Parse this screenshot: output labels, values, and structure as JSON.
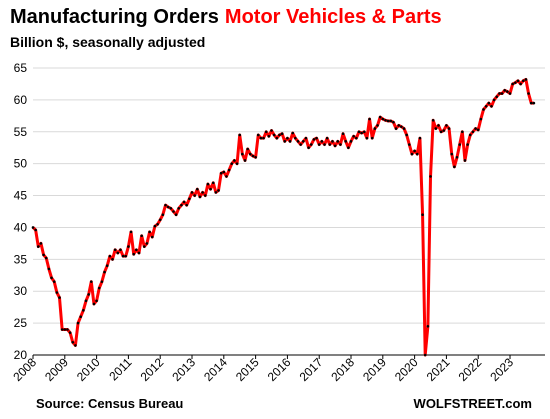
{
  "chart_data": {
    "type": "line",
    "title_part1": "Manufacturing  Orders",
    "title_part2": "Motor Vehicles & Parts",
    "subtitle": "Billion $, seasonally adjusted",
    "source": "Source: Census Bureau",
    "watermark": "WOLFSTREET.com",
    "ylim": [
      20,
      65
    ],
    "yticks": [
      20,
      25,
      30,
      35,
      40,
      45,
      50,
      55,
      60,
      65
    ],
    "xlim": [
      2008,
      2024.1
    ],
    "xticks": [
      "2008",
      "2009",
      "2010",
      "2011",
      "2012",
      "2013",
      "2014",
      "2015",
      "2016",
      "2017",
      "2018",
      "2019",
      "2020",
      "2021",
      "2022",
      "2023"
    ],
    "grid": "horizontal",
    "line_color": "#ff0000",
    "marker_color": "#000000",
    "series": [
      {
        "x": [
          2008.0,
          2008.083,
          2008.167,
          2008.25,
          2008.333,
          2008.417,
          2008.5,
          2008.583,
          2008.667,
          2008.75,
          2008.833,
          2008.917,
          2009.0,
          2009.083,
          2009.167,
          2009.25,
          2009.333,
          2009.417,
          2009.5,
          2009.583,
          2009.667,
          2009.75,
          2009.833,
          2009.917,
          2010.0,
          2010.083,
          2010.167,
          2010.25,
          2010.333,
          2010.417,
          2010.5,
          2010.583,
          2010.667,
          2010.75,
          2010.833,
          2010.917,
          2011.0,
          2011.083,
          2011.167,
          2011.25,
          2011.333,
          2011.417,
          2011.5,
          2011.583,
          2011.667,
          2011.75,
          2011.833,
          2011.917,
          2012.0,
          2012.083,
          2012.167,
          2012.25,
          2012.333,
          2012.417,
          2012.5,
          2012.583,
          2012.667,
          2012.75,
          2012.833,
          2012.917,
          2013.0,
          2013.083,
          2013.167,
          2013.25,
          2013.333,
          2013.417,
          2013.5,
          2013.583,
          2013.667,
          2013.75,
          2013.833,
          2013.917,
          2014.0,
          2014.083,
          2014.167,
          2014.25,
          2014.333,
          2014.417,
          2014.5,
          2014.583,
          2014.667,
          2014.75,
          2014.833,
          2014.917,
          2015.0,
          2015.083,
          2015.167,
          2015.25,
          2015.333,
          2015.417,
          2015.5,
          2015.583,
          2015.667,
          2015.75,
          2015.833,
          2015.917,
          2016.0,
          2016.083,
          2016.167,
          2016.25,
          2016.333,
          2016.417,
          2016.5,
          2016.583,
          2016.667,
          2016.75,
          2016.833,
          2016.917,
          2017.0,
          2017.083,
          2017.167,
          2017.25,
          2017.333,
          2017.417,
          2017.5,
          2017.583,
          2017.667,
          2017.75,
          2017.833,
          2017.917,
          2018.0,
          2018.083,
          2018.167,
          2018.25,
          2018.333,
          2018.417,
          2018.5,
          2018.583,
          2018.667,
          2018.75,
          2018.833,
          2018.917,
          2019.0,
          2019.083,
          2019.167,
          2019.25,
          2019.333,
          2019.417,
          2019.5,
          2019.583,
          2019.667,
          2019.75,
          2019.833,
          2019.917,
          2020.0,
          2020.083,
          2020.167,
          2020.25,
          2020.333,
          2020.417,
          2020.5,
          2020.583,
          2020.667,
          2020.75,
          2020.833,
          2020.917,
          2021.0,
          2021.083,
          2021.167,
          2021.25,
          2021.333,
          2021.417,
          2021.5,
          2021.583,
          2021.667,
          2021.75,
          2021.833,
          2021.917,
          2022.0,
          2022.083,
          2022.167,
          2022.25,
          2022.333,
          2022.417,
          2022.5,
          2022.583,
          2022.667,
          2022.75,
          2022.833,
          2022.917,
          2023.0,
          2023.083,
          2023.167,
          2023.25,
          2023.333,
          2023.417,
          2023.5,
          2023.583,
          2023.667,
          2023.75
        ],
        "values": [
          40.0,
          39.6,
          37.0,
          37.5,
          35.7,
          35.2,
          33.5,
          32.1,
          31.5,
          29.8,
          29.0,
          24.0,
          24.0,
          24.0,
          23.5,
          22.0,
          21.5,
          25.0,
          26.0,
          27.0,
          28.5,
          29.5,
          31.5,
          28.0,
          28.5,
          30.5,
          31.5,
          33.0,
          34.0,
          35.5,
          35.0,
          36.5,
          36.0,
          36.5,
          35.5,
          35.5,
          37.0,
          39.3,
          35.8,
          36.5,
          36.0,
          38.7,
          37.0,
          37.5,
          39.3,
          38.5,
          40.2,
          40.5,
          41.2,
          42.0,
          43.5,
          43.2,
          43.0,
          42.5,
          42.0,
          43.0,
          43.5,
          44.0,
          43.5,
          44.5,
          45.5,
          45.0,
          46.0,
          44.8,
          45.5,
          45.0,
          46.8,
          46.0,
          47.0,
          45.5,
          45.8,
          48.5,
          48.7,
          48.0,
          49.0,
          50.0,
          50.5,
          50.0,
          54.5,
          51.5,
          50.5,
          52.3,
          51.5,
          51.2,
          51.0,
          54.5,
          54.0,
          54.0,
          55.0,
          54.3,
          55.2,
          54.5,
          54.0,
          54.5,
          54.7,
          53.5,
          54.0,
          53.5,
          54.8,
          54.0,
          53.5,
          53.0,
          53.5,
          54.0,
          52.5,
          53.0,
          53.8,
          54.0,
          53.0,
          53.5,
          53.0,
          54.0,
          53.0,
          53.5,
          52.8,
          53.5,
          53.0,
          54.7,
          53.5,
          52.5,
          53.5,
          54.3,
          54.0,
          55.0,
          54.8,
          55.0,
          54.0,
          57.0,
          54.0,
          55.5,
          56.0,
          57.3,
          57.0,
          56.8,
          56.7,
          56.7,
          56.5,
          55.5,
          56.0,
          55.8,
          55.5,
          54.5,
          53.0,
          51.5,
          52.0,
          51.5,
          54.0,
          42.0,
          20.0,
          24.5,
          48.0,
          56.8,
          55.5,
          56.0,
          55.0,
          55.2,
          56.0,
          55.5,
          51.5,
          49.5,
          51.0,
          53.0,
          55.0,
          50.5,
          53.0,
          54.5,
          55.0,
          55.5,
          55.3,
          57.0,
          58.5,
          59.0,
          59.5,
          59.0,
          60.0,
          60.5,
          61.0,
          61.0,
          61.5,
          61.3,
          61.0,
          62.5,
          62.7,
          63.0,
          62.5,
          63.0,
          63.2,
          61.0,
          59.5,
          59.5
        ]
      }
    ]
  }
}
